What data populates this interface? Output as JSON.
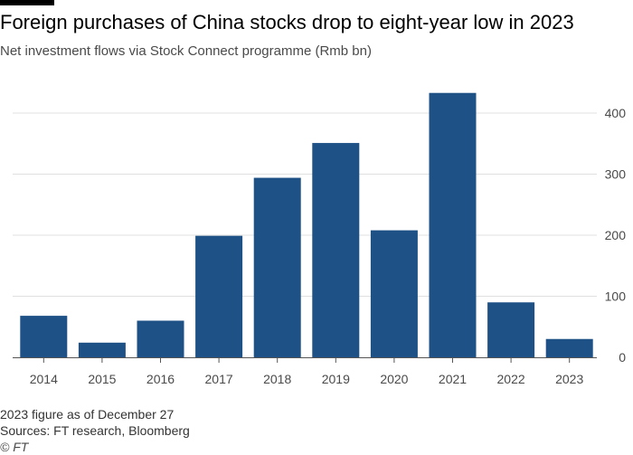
{
  "chart_data": {
    "type": "bar",
    "title": "Foreign purchases of China stocks drop to eight-year low in 2023",
    "subtitle": "Net investment flows via Stock Connect programme (Rmb bn)",
    "categories": [
      "2014",
      "2015",
      "2016",
      "2017",
      "2018",
      "2019",
      "2020",
      "2021",
      "2022",
      "2023"
    ],
    "values": [
      68,
      24,
      60,
      199,
      294,
      351,
      208,
      433,
      90,
      30
    ],
    "y_ticks": [
      0,
      100,
      200,
      300,
      400
    ],
    "ylim": [
      0,
      450
    ],
    "y_axis_position": "right",
    "grid": true,
    "xlabel": "",
    "ylabel": "",
    "bar_color": "#1e5287",
    "grid_color": "#e0e0e0",
    "axis_color": "#555555"
  },
  "notes": {
    "footnote": "2023 figure as of December 27",
    "sources": "Sources: FT research, Bloomberg",
    "copyright": "© FT"
  }
}
